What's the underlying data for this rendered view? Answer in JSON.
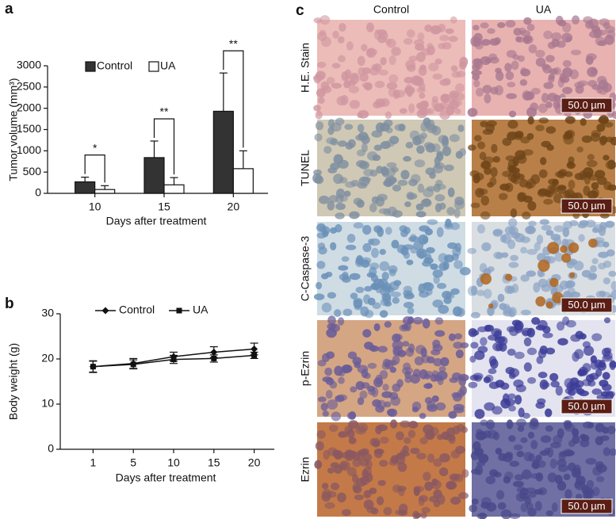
{
  "chart_data": [
    {
      "type": "bar",
      "panel_label": "a",
      "y_label": "Tumor volume (mm³)",
      "x_label": "Days after treatment",
      "categories": [
        "10",
        "15",
        "20"
      ],
      "series": [
        {
          "name": "Control",
          "color": "#333333",
          "values": [
            270,
            840,
            1930
          ],
          "errors": [
            110,
            390,
            900
          ]
        },
        {
          "name": "UA",
          "color": "#ffffff",
          "values": [
            90,
            200,
            580
          ],
          "errors": [
            90,
            170,
            420
          ]
        }
      ],
      "significance": [
        "*",
        "**",
        "**"
      ],
      "ylim": [
        0,
        3000
      ],
      "yticks": [
        0,
        500,
        1000,
        1500,
        2000,
        2500,
        3000
      ]
    },
    {
      "type": "line",
      "panel_label": "b",
      "y_label": "Body weight (g)",
      "x_label": "Days after treatment",
      "categories": [
        "1",
        "5",
        "10",
        "15",
        "20"
      ],
      "series": [
        {
          "name": "Control",
          "color": "#111111",
          "marker": "diamond",
          "values": [
            18.3,
            19.0,
            20.5,
            21.5,
            22.2
          ],
          "errors": [
            1.2,
            1.1,
            1.0,
            1.2,
            1.3
          ]
        },
        {
          "name": "UA",
          "color": "#111111",
          "marker": "square",
          "values": [
            18.3,
            18.8,
            19.9,
            20.1,
            20.8
          ],
          "errors": [
            1.3,
            1.0,
            0.9,
            0.8,
            0.7
          ]
        }
      ],
      "ylim": [
        0,
        30
      ],
      "yticks": [
        0,
        10,
        20,
        30
      ]
    }
  ],
  "panel_c": {
    "label": "c",
    "columns": [
      "Control",
      "UA"
    ],
    "rows": [
      "H.E. Stain",
      "TUNEL",
      "C-Caspase-3",
      "p-Ezrin",
      "Ezrin"
    ],
    "scale_bars": [
      "50.0 µm",
      "50.0 µm",
      "50.0 µm",
      "50.0 µm",
      "50.0 µm"
    ]
  }
}
